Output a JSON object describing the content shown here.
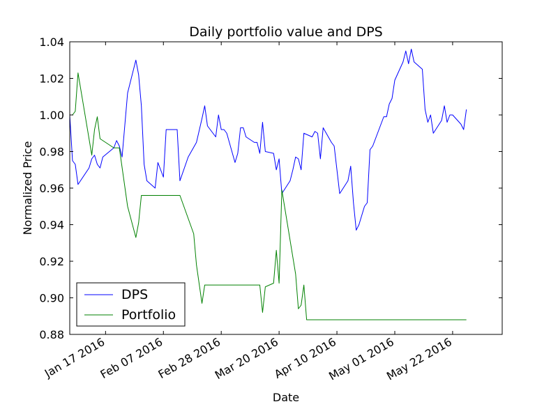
{
  "chart_data": {
    "type": "line",
    "title": "Daily portfolio value and DPS",
    "xlabel": "Date",
    "ylabel": "Normalized Price",
    "x_range": [
      "2016-01-04",
      "2016-06-09"
    ],
    "ylim": [
      0.88,
      1.04
    ],
    "y_ticks": [
      "0.88",
      "0.90",
      "0.92",
      "0.94",
      "0.96",
      "0.98",
      "1.00",
      "1.02",
      "1.04"
    ],
    "y_tick_values": [
      0.88,
      0.9,
      0.92,
      0.94,
      0.96,
      0.98,
      1.0,
      1.02,
      1.04
    ],
    "x_ticks": [
      {
        "date": "2016-01-17",
        "label": "Jan 17 2016"
      },
      {
        "date": "2016-02-07",
        "label": "Feb 07 2016"
      },
      {
        "date": "2016-02-28",
        "label": "Feb 28 2016"
      },
      {
        "date": "2016-03-20",
        "label": "Mar 20 2016"
      },
      {
        "date": "2016-04-10",
        "label": "Apr 10 2016"
      },
      {
        "date": "2016-05-01",
        "label": "May 01 2016"
      },
      {
        "date": "2016-05-22",
        "label": "May 22 2016"
      }
    ],
    "grid": false,
    "legend_position": "lower-left",
    "series": [
      {
        "name": "DPS",
        "color": "#0000ff",
        "points": [
          [
            "2016-01-04",
            1.0
          ],
          [
            "2016-01-05",
            0.975
          ],
          [
            "2016-01-06",
            0.973
          ],
          [
            "2016-01-07",
            0.962
          ],
          [
            "2016-01-11",
            0.971
          ],
          [
            "2016-01-12",
            0.976
          ],
          [
            "2016-01-13",
            0.978
          ],
          [
            "2016-01-14",
            0.973
          ],
          [
            "2016-01-15",
            0.971
          ],
          [
            "2016-01-16",
            0.977
          ],
          [
            "2016-01-20",
            0.982
          ],
          [
            "2016-01-21",
            0.986
          ],
          [
            "2016-01-22",
            0.983
          ],
          [
            "2016-01-23",
            0.977
          ],
          [
            "2016-01-25",
            1.012
          ],
          [
            "2016-01-28",
            1.03
          ],
          [
            "2016-01-29",
            1.022
          ],
          [
            "2016-01-30",
            1.005
          ],
          [
            "2016-01-31",
            0.973
          ],
          [
            "2016-02-01",
            0.964
          ],
          [
            "2016-02-04",
            0.96
          ],
          [
            "2016-02-05",
            0.974
          ],
          [
            "2016-02-07",
            0.966
          ],
          [
            "2016-02-08",
            0.992
          ],
          [
            "2016-02-12",
            0.992
          ],
          [
            "2016-02-13",
            0.964
          ],
          [
            "2016-02-16",
            0.977
          ],
          [
            "2016-02-19",
            0.985
          ],
          [
            "2016-02-21",
            0.998
          ],
          [
            "2016-02-22",
            1.005
          ],
          [
            "2016-02-23",
            0.994
          ],
          [
            "2016-02-26",
            0.988
          ],
          [
            "2016-02-27",
            1.0
          ],
          [
            "2016-02-28",
            0.992
          ],
          [
            "2016-02-29",
            0.992
          ],
          [
            "2016-03-01",
            0.99
          ],
          [
            "2016-03-04",
            0.974
          ],
          [
            "2016-03-05",
            0.979
          ],
          [
            "2016-03-06",
            0.993
          ],
          [
            "2016-03-07",
            0.993
          ],
          [
            "2016-03-08",
            0.988
          ],
          [
            "2016-03-11",
            0.985
          ],
          [
            "2016-03-12",
            0.985
          ],
          [
            "2016-03-13",
            0.979
          ],
          [
            "2016-03-14",
            0.996
          ],
          [
            "2016-03-15",
            0.98
          ],
          [
            "2016-03-18",
            0.979
          ],
          [
            "2016-03-19",
            0.97
          ],
          [
            "2016-03-20",
            0.976
          ],
          [
            "2016-03-21",
            0.957
          ],
          [
            "2016-03-24",
            0.964
          ],
          [
            "2016-03-25",
            0.97
          ],
          [
            "2016-03-26",
            0.977
          ],
          [
            "2016-03-27",
            0.976
          ],
          [
            "2016-03-28",
            0.97
          ],
          [
            "2016-03-29",
            0.99
          ],
          [
            "2016-04-01",
            0.988
          ],
          [
            "2016-04-02",
            0.991
          ],
          [
            "2016-04-03",
            0.99
          ],
          [
            "2016-04-04",
            0.976
          ],
          [
            "2016-04-05",
            0.993
          ],
          [
            "2016-04-08",
            0.985
          ],
          [
            "2016-04-09",
            0.983
          ],
          [
            "2016-04-11",
            0.957
          ],
          [
            "2016-04-14",
            0.964
          ],
          [
            "2016-04-15",
            0.972
          ],
          [
            "2016-04-16",
            0.952
          ],
          [
            "2016-04-17",
            0.937
          ],
          [
            "2016-04-18",
            0.94
          ],
          [
            "2016-04-20",
            0.95
          ],
          [
            "2016-04-21",
            0.952
          ],
          [
            "2016-04-22",
            0.981
          ],
          [
            "2016-04-23",
            0.983
          ],
          [
            "2016-04-24",
            0.987
          ],
          [
            "2016-04-27",
            0.999
          ],
          [
            "2016-04-28",
            0.999
          ],
          [
            "2016-04-29",
            1.006
          ],
          [
            "2016-04-30",
            1.009
          ],
          [
            "2016-05-01",
            1.019
          ],
          [
            "2016-05-04",
            1.029
          ],
          [
            "2016-05-05",
            1.035
          ],
          [
            "2016-05-06",
            1.028
          ],
          [
            "2016-05-07",
            1.036
          ],
          [
            "2016-05-08",
            1.029
          ],
          [
            "2016-05-11",
            1.025
          ],
          [
            "2016-05-12",
            1.003
          ],
          [
            "2016-05-13",
            0.996
          ],
          [
            "2016-05-14",
            1.0
          ],
          [
            "2016-05-15",
            0.99
          ],
          [
            "2016-05-18",
            0.997
          ],
          [
            "2016-05-19",
            1.005
          ],
          [
            "2016-05-20",
            0.996
          ],
          [
            "2016-05-21",
            1.0
          ],
          [
            "2016-05-22",
            1.0
          ],
          [
            "2016-05-25",
            0.995
          ],
          [
            "2016-05-26",
            0.992
          ],
          [
            "2016-05-27",
            1.003
          ]
        ]
      },
      {
        "name": "Portfolio",
        "color": "#008000",
        "points": [
          [
            "2016-01-04",
            1.0
          ],
          [
            "2016-01-05",
            1.0
          ],
          [
            "2016-01-06",
            1.002
          ],
          [
            "2016-01-07",
            1.023
          ],
          [
            "2016-01-12",
            0.978
          ],
          [
            "2016-01-13",
            0.992
          ],
          [
            "2016-01-14",
            0.999
          ],
          [
            "2016-01-15",
            0.987
          ],
          [
            "2016-01-20",
            0.982
          ],
          [
            "2016-01-22",
            0.982
          ],
          [
            "2016-01-25",
            0.95
          ],
          [
            "2016-01-28",
            0.933
          ],
          [
            "2016-01-29",
            0.941
          ],
          [
            "2016-01-30",
            0.956
          ],
          [
            "2016-02-13",
            0.956
          ],
          [
            "2016-02-18",
            0.935
          ],
          [
            "2016-02-19",
            0.918
          ],
          [
            "2016-02-21",
            0.897
          ],
          [
            "2016-02-22",
            0.907
          ],
          [
            "2016-03-13",
            0.907
          ],
          [
            "2016-03-14",
            0.892
          ],
          [
            "2016-03-15",
            0.906
          ],
          [
            "2016-03-18",
            0.908
          ],
          [
            "2016-03-19",
            0.926
          ],
          [
            "2016-03-20",
            0.908
          ],
          [
            "2016-03-21",
            0.959
          ],
          [
            "2016-03-26",
            0.913
          ],
          [
            "2016-03-27",
            0.894
          ],
          [
            "2016-03-28",
            0.896
          ],
          [
            "2016-03-29",
            0.907
          ],
          [
            "2016-03-30",
            0.888
          ],
          [
            "2016-05-27",
            0.888
          ]
        ]
      }
    ]
  }
}
